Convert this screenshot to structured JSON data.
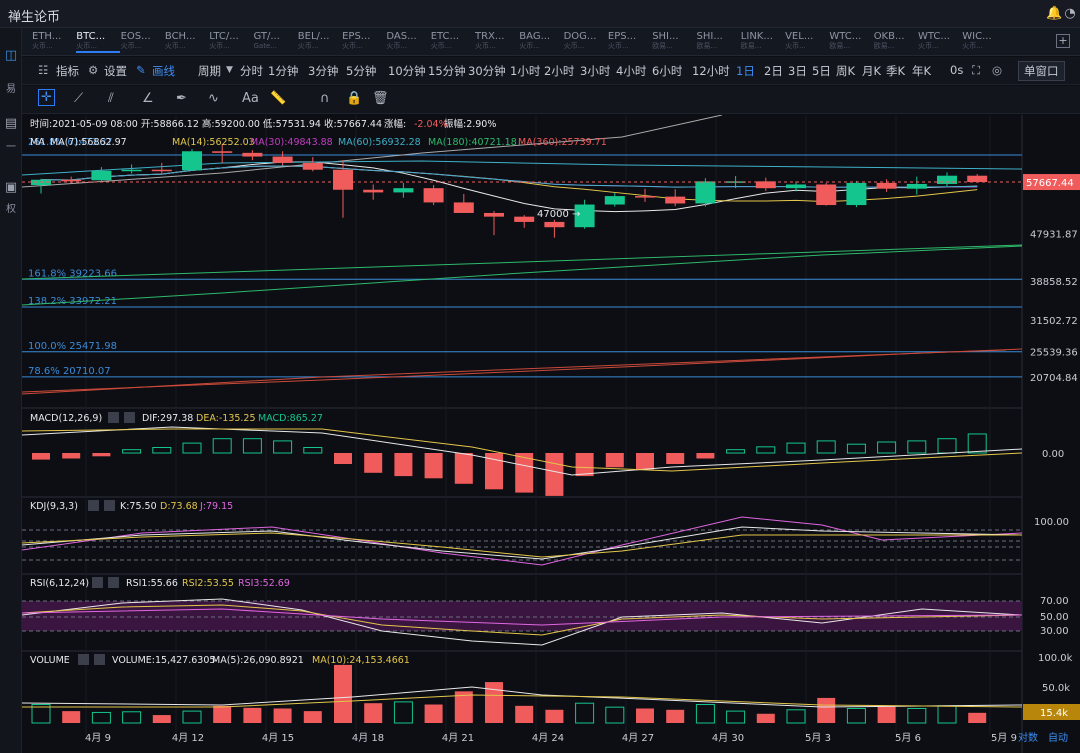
{
  "app": {
    "title": "禅生论币",
    "icons": [
      "bell-icon",
      "settings-circle-icon"
    ]
  },
  "left_rail": {
    "items": [
      {
        "icon": "chart-icon",
        "label": "易"
      },
      {
        "icon": "list-icon",
        "label": "一"
      },
      {
        "icon": "contract-icon",
        "label": "权"
      }
    ]
  },
  "tabs": [
    {
      "name": "ETH...",
      "sub": "火币..."
    },
    {
      "name": "BTC...",
      "sub": "火币..."
    },
    {
      "name": "EOS...",
      "sub": "火币..."
    },
    {
      "name": "BCH...",
      "sub": "火币..."
    },
    {
      "name": "LTC/...",
      "sub": "火币..."
    },
    {
      "name": "GT/...",
      "sub": "Gate..."
    },
    {
      "name": "BEL/...",
      "sub": "火币..."
    },
    {
      "name": "EPS...",
      "sub": "火币..."
    },
    {
      "name": "DAS...",
      "sub": "火币..."
    },
    {
      "name": "ETC...",
      "sub": "火币..."
    },
    {
      "name": "TRX...",
      "sub": "火币..."
    },
    {
      "name": "BAG...",
      "sub": "火币..."
    },
    {
      "name": "DOG...",
      "sub": "火币..."
    },
    {
      "name": "EPS...",
      "sub": "火币..."
    },
    {
      "name": "SHI...",
      "sub": "欧易..."
    },
    {
      "name": "SHI...",
      "sub": "欧易..."
    },
    {
      "name": "LINK...",
      "sub": "欧易..."
    },
    {
      "name": "VEL...",
      "sub": "火币..."
    },
    {
      "name": "WTC...",
      "sub": "欧易..."
    },
    {
      "name": "OKB...",
      "sub": "欧易..."
    },
    {
      "name": "WTC...",
      "sub": "火币..."
    },
    {
      "name": "WIC...",
      "sub": "火币..."
    }
  ],
  "active_tab": 1,
  "toolbar": {
    "indicator": "指标",
    "settings": "设置",
    "draw": "画线",
    "period": "周期",
    "timeframes": [
      "分时",
      "1分钟",
      "3分钟",
      "5分钟",
      "10分钟",
      "15分钟",
      "30分钟",
      "1小时",
      "2小时",
      "3小时",
      "4小时",
      "6小时",
      "12小时",
      "1日",
      "2日",
      "3日",
      "5日",
      "周K",
      "月K",
      "季K",
      "年K"
    ],
    "active_timeframe": "1日",
    "seconds": "0s",
    "window": "单窗口"
  },
  "draw_tools": [
    "crosshair-icon",
    "line-icon",
    "multi-line-icon",
    "angle-icon",
    "pen-icon",
    "wave-icon",
    "text-aa-icon",
    "ruler-icon",
    "magnet-icon",
    "lock-icon",
    "trash-icon"
  ],
  "info": {
    "line": "时间:2021-05-09 08:00  开:58866.12  高:59200.00  低:57531.94  收:57667.44",
    "change_label": "涨幅:",
    "change": "-2.04%",
    "amp": "振幅:2.90%",
    "ma_label": "MA",
    "ma7": "MA(7):56862.97",
    "ma14": "MA(14):56252.03",
    "ma30": "MA(30):49843.88",
    "ma60": "MA(60):56932.28",
    "ma180": "MA(180):40721.18",
    "ma360": "MA(360):25739.71",
    "overlap_text": "261.8% 61473.37"
  },
  "fib": [
    {
      "label": "161.8% 39223.66"
    },
    {
      "label": "138.2% 33972.21"
    },
    {
      "label": "100.0% 25471.98"
    },
    {
      "label": "78.6% 20710.07"
    }
  ],
  "price_axis": {
    "current": "57667.44",
    "ticks": [
      "47931.87",
      "38858.52",
      "31502.72",
      "25539.36",
      "20704.84"
    ]
  },
  "annotation": "47000 →",
  "macd": {
    "label": "MACD(12,26,9)",
    "dif": "DIF:297.38",
    "dea": "DEA:-135.25",
    "macd": "MACD:865.27",
    "tick": "0.00"
  },
  "kdj": {
    "label": "KDJ(9,3,3)",
    "k": "K:75.50",
    "d": "D:73.68",
    "j": "J:79.15",
    "tick": "100.00"
  },
  "rsi": {
    "label": "RSI(6,12,24)",
    "rsi1": "RSI1:55.66",
    "rsi2": "RSI2:53.55",
    "rsi3": "RSI3:52.69",
    "ticks": [
      "70.00",
      "50.00",
      "30.00"
    ]
  },
  "volume": {
    "label": "VOLUME",
    "vol": "VOLUME:15,427.6305",
    "ma5": "MA(5):26,090.8921",
    "ma10": "MA(10):24,153.4661",
    "ticks": [
      "100.0k",
      "50.0k"
    ],
    "current": "15.4k"
  },
  "dates": [
    "4月 9",
    "4月 12",
    "4月 15",
    "4月 18",
    "4月 21",
    "4月 24",
    "4月 27",
    "4月 30",
    "5月 3",
    "5月 6",
    "5月 9"
  ],
  "scale_options": [
    "对数",
    "自动"
  ],
  "colors": {
    "up": "#14c68d",
    "down": "#f05c5c",
    "accent": "#2d7cf6",
    "fib": "#3a8bd8"
  },
  "chart_data": {
    "type": "candlestick",
    "categories": [
      "4/8",
      "4/9",
      "4/10",
      "4/11",
      "4/12",
      "4/13",
      "4/14",
      "4/15",
      "4/16",
      "4/17",
      "4/18",
      "4/19",
      "4/20",
      "4/21",
      "4/22",
      "4/23",
      "4/24",
      "4/25",
      "4/26",
      "4/27",
      "4/28",
      "4/29",
      "4/30",
      "5/1",
      "5/2",
      "5/3",
      "5/4",
      "5/5",
      "5/6",
      "5/7",
      "5/8",
      "5/9"
    ],
    "open": [
      57100,
      58100,
      58000,
      59800,
      60000,
      59900,
      63500,
      63200,
      62500,
      61300,
      60000,
      56200,
      55700,
      56500,
      53800,
      51800,
      51100,
      50100,
      49100,
      53400,
      55000,
      54900,
      53600,
      57800,
      57800,
      56500,
      57200,
      53300,
      57500,
      56400,
      57300,
      58866
    ],
    "high": [
      58300,
      58700,
      60500,
      61000,
      61300,
      63900,
      64900,
      63700,
      63500,
      62400,
      61800,
      57200,
      57500,
      57100,
      55400,
      52200,
      51400,
      50500,
      54300,
      55600,
      56400,
      56300,
      58400,
      58800,
      58500,
      57800,
      57500,
      57900,
      58200,
      58700,
      59500,
      59200
    ],
    "low": [
      55500,
      57400,
      57800,
      59300,
      59200,
      59800,
      61300,
      61800,
      60800,
      59700,
      50900,
      54300,
      54700,
      53300,
      51900,
      47600,
      49000,
      47100,
      48800,
      53000,
      53900,
      53100,
      53000,
      56500,
      56000,
      55900,
      53200,
      52900,
      55800,
      55300,
      56900,
      57531
    ],
    "close": [
      58100,
      58000,
      59800,
      60000,
      59900,
      63500,
      63200,
      62500,
      61300,
      60000,
      56200,
      55700,
      56500,
      53800,
      51800,
      51100,
      50100,
      49100,
      53400,
      55000,
      54900,
      53600,
      57800,
      57800,
      56500,
      57200,
      53300,
      57500,
      56400,
      57300,
      58866,
      57667
    ],
    "volume": [
      28000,
      18000,
      16000,
      17000,
      12000,
      18000,
      26000,
      23000,
      22000,
      18000,
      88000,
      30000,
      32000,
      28000,
      48000,
      62000,
      26000,
      20000,
      30000,
      24000,
      22000,
      20000,
      28000,
      18000,
      14000,
      20000,
      38000,
      22000,
      25000,
      22000,
      26000,
      15428
    ],
    "macd_hist": [
      -300,
      -250,
      -150,
      150,
      250,
      450,
      650,
      650,
      550,
      250,
      -500,
      -900,
      -1050,
      -1150,
      -1400,
      -1650,
      -1800,
      -1950,
      -1050,
      -650,
      -750,
      -500,
      -250,
      150,
      280,
      450,
      550,
      400,
      500,
      550,
      650,
      865
    ],
    "price_axis_range": [
      15000,
      70000
    ],
    "fib_levels": [
      39223.66,
      33972.21,
      25471.98,
      20710.07
    ]
  }
}
